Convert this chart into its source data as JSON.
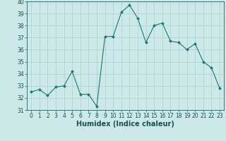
{
  "x": [
    0,
    1,
    2,
    3,
    4,
    5,
    6,
    7,
    8,
    9,
    10,
    11,
    12,
    13,
    14,
    15,
    16,
    17,
    18,
    19,
    20,
    21,
    22,
    23
  ],
  "y": [
    32.5,
    32.7,
    32.2,
    32.9,
    33.0,
    34.2,
    32.3,
    32.3,
    31.3,
    37.1,
    37.1,
    39.1,
    39.7,
    38.6,
    36.6,
    38.0,
    38.2,
    36.7,
    36.6,
    36.0,
    36.5,
    35.0,
    34.5,
    32.8
  ],
  "line_color": "#1a7a6e",
  "marker": "D",
  "marker_size": 2,
  "bg_color": "#cce8e8",
  "grid_color": "#aacfcf",
  "xlabel": "Humidex (Indice chaleur)",
  "ylim": [
    31,
    40
  ],
  "xlim": [
    -0.5,
    23.5
  ],
  "yticks": [
    31,
    32,
    33,
    34,
    35,
    36,
    37,
    38,
    39,
    40
  ],
  "xticks": [
    0,
    1,
    2,
    3,
    4,
    5,
    6,
    7,
    8,
    9,
    10,
    11,
    12,
    13,
    14,
    15,
    16,
    17,
    18,
    19,
    20,
    21,
    22,
    23
  ],
  "tick_label_size": 5.5,
  "xlabel_size": 7.0,
  "xlabel_weight": "bold"
}
